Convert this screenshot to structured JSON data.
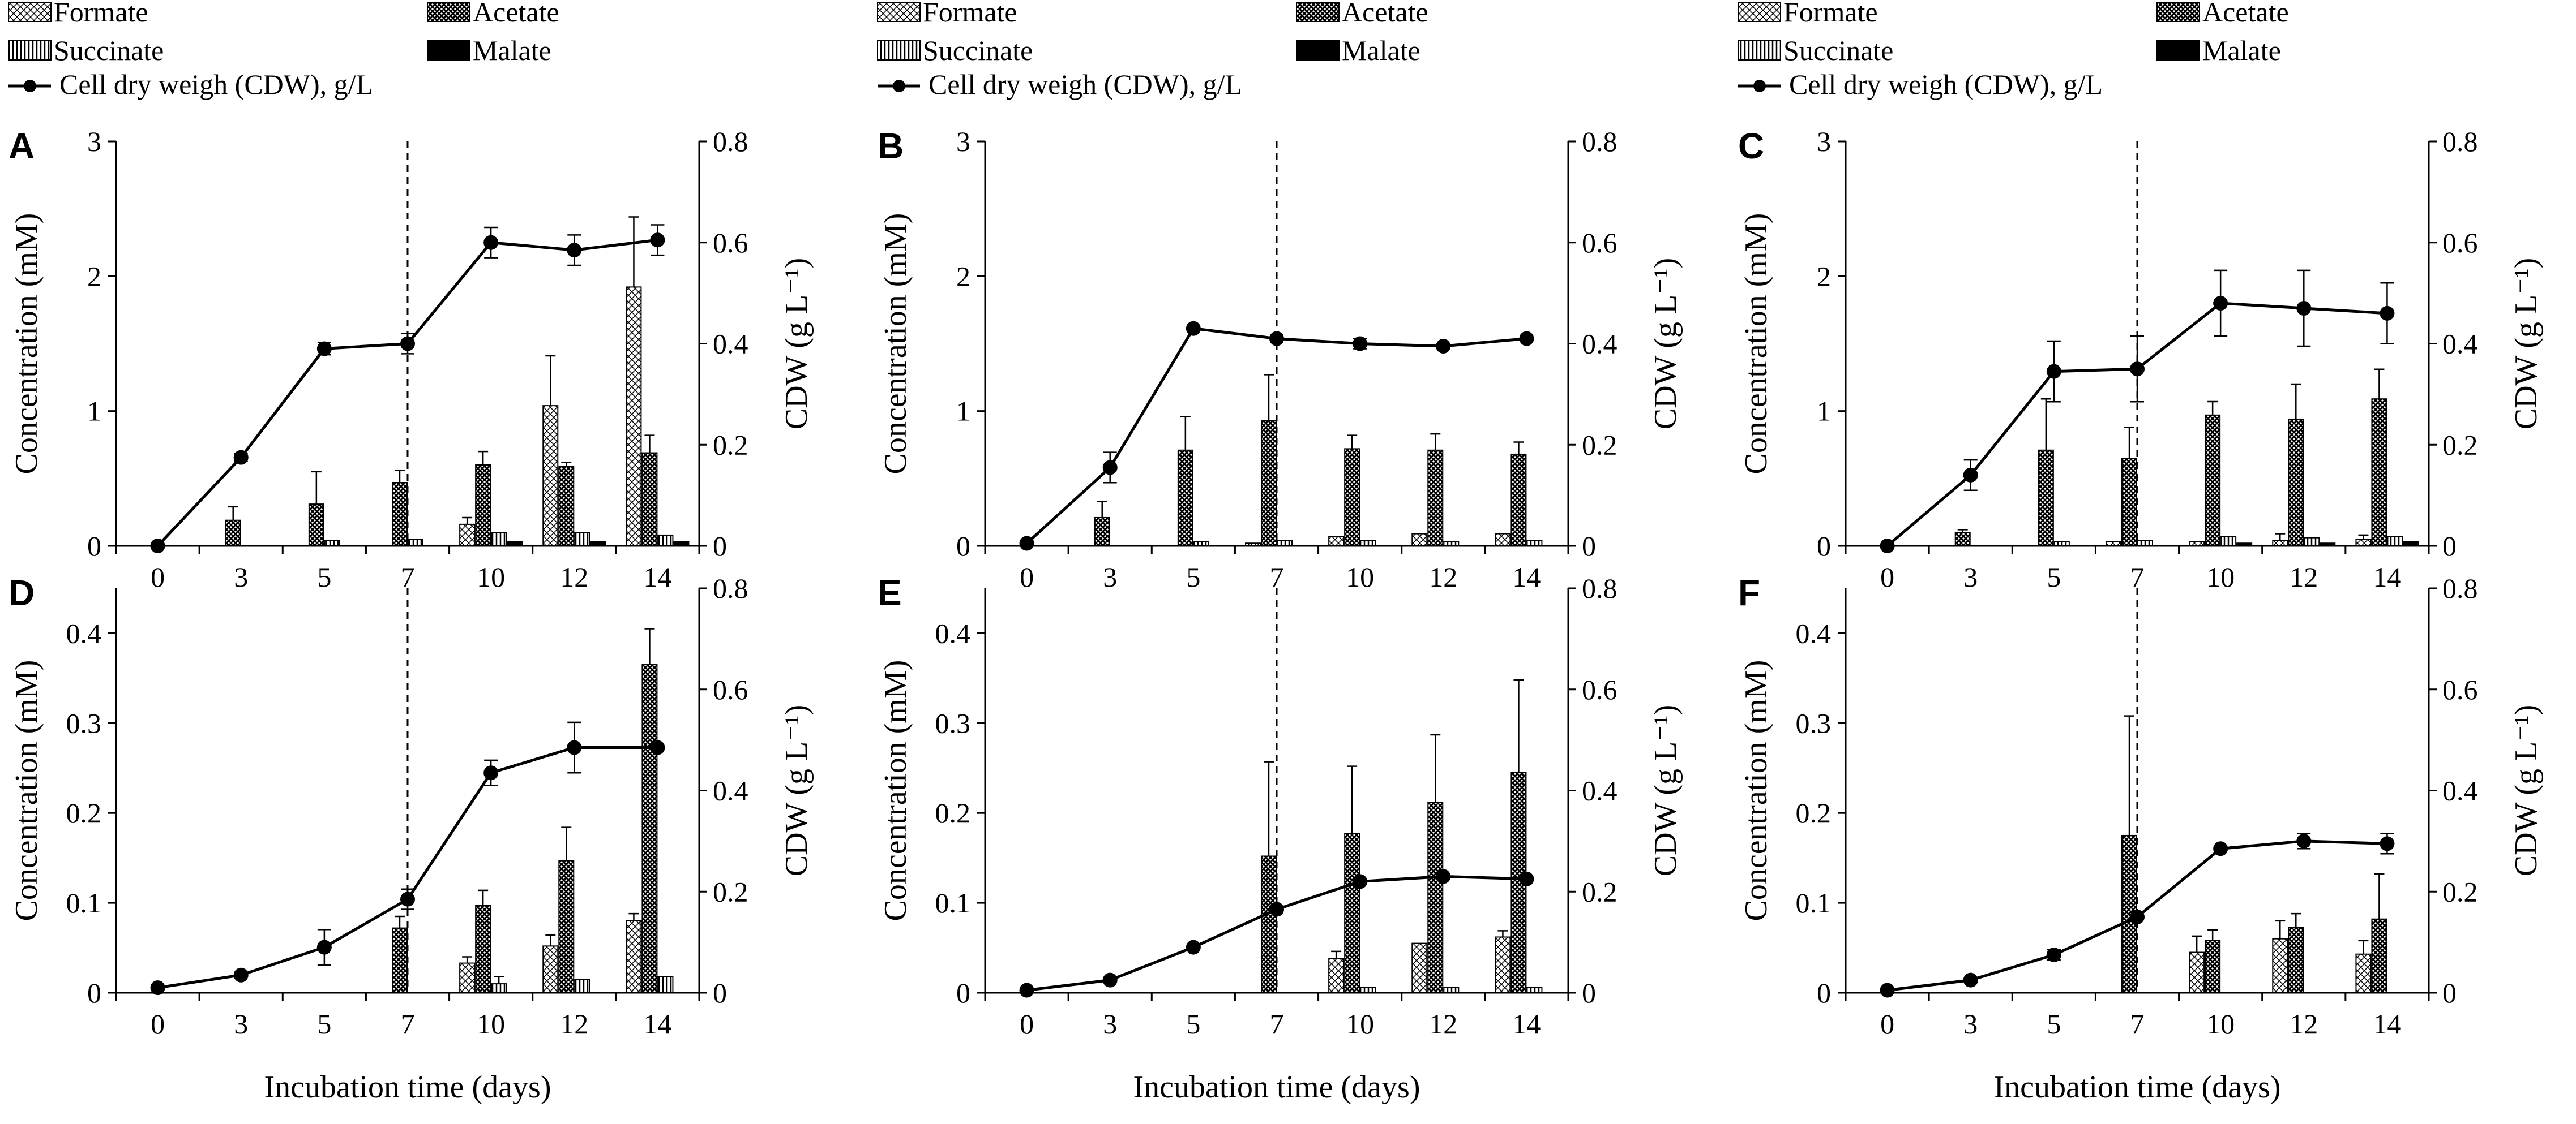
{
  "colors": {
    "ink": "#000000",
    "background": "#ffffff"
  },
  "legend": {
    "formate": "Formate",
    "acetate": "Acetate",
    "succinate": "Succinate",
    "malate": "Malate",
    "cdw": "Cell dry weigh (CDW), g/L"
  },
  "axes": {
    "ylabel_left": "Concentration (mM)",
    "ylabel_right": "CDW (g L⁻¹)",
    "xlabel": "Incubation time (days)"
  },
  "chart_data": [
    {
      "panel": "A",
      "type": "bar",
      "categories": [
        "0",
        "3",
        "5",
        "7",
        "10",
        "12",
        "14"
      ],
      "ylim": [
        0,
        3
      ],
      "yticks": [
        "0",
        "1",
        "2",
        "3"
      ],
      "y2lim": [
        0,
        0.8
      ],
      "y2ticks": [
        "0",
        "0.2",
        "0.4",
        "0.6",
        "0.8"
      ],
      "marker_at": "7",
      "series": [
        {
          "name": "Formate",
          "values": [
            0,
            0,
            0,
            0,
            0.16,
            1.04,
            1.92
          ],
          "errors": [
            0,
            0,
            0,
            0,
            0.05,
            0.37,
            0.52
          ]
        },
        {
          "name": "Acetate",
          "values": [
            0,
            0.19,
            0.31,
            0.47,
            0.6,
            0.59,
            0.69
          ],
          "errors": [
            0,
            0.1,
            0.24,
            0.09,
            0.1,
            0.03,
            0.13
          ]
        },
        {
          "name": "Succinate",
          "values": [
            0,
            0,
            0.04,
            0.05,
            0.1,
            0.1,
            0.08
          ],
          "errors": [
            0,
            0,
            0,
            0,
            0,
            0,
            0
          ]
        },
        {
          "name": "Malate",
          "values": [
            0,
            0,
            0,
            0,
            0.03,
            0.03,
            0.03
          ],
          "errors": [
            0,
            0,
            0,
            0,
            0,
            0,
            0
          ]
        }
      ],
      "cdw": {
        "values": [
          0,
          0.175,
          0.39,
          0.4,
          0.6,
          0.585,
          0.605
        ],
        "errors": [
          0,
          0.008,
          0.012,
          0.02,
          0.03,
          0.03,
          0.03
        ]
      }
    },
    {
      "panel": "B",
      "type": "bar",
      "categories": [
        "0",
        "3",
        "5",
        "7",
        "10",
        "12",
        "14"
      ],
      "ylim": [
        0,
        3
      ],
      "yticks": [
        "0",
        "1",
        "2",
        "3"
      ],
      "y2lim": [
        0,
        0.8
      ],
      "y2ticks": [
        "0",
        "0.2",
        "0.4",
        "0.6",
        "0.8"
      ],
      "marker_at": "7",
      "series": [
        {
          "name": "Formate",
          "values": [
            0,
            0,
            0,
            0.02,
            0.07,
            0.09,
            0.09
          ],
          "errors": [
            0,
            0,
            0,
            0,
            0,
            0,
            0
          ]
        },
        {
          "name": "Acetate",
          "values": [
            0,
            0.21,
            0.71,
            0.93,
            0.72,
            0.71,
            0.68
          ],
          "errors": [
            0,
            0.12,
            0.25,
            0.34,
            0.1,
            0.12,
            0.09
          ]
        },
        {
          "name": "Succinate",
          "values": [
            0,
            0,
            0.03,
            0.04,
            0.04,
            0.03,
            0.04
          ],
          "errors": [
            0,
            0,
            0,
            0,
            0,
            0,
            0
          ]
        },
        {
          "name": "Malate",
          "values": [
            0,
            0,
            0,
            0,
            0,
            0,
            0
          ],
          "errors": [
            0,
            0,
            0,
            0,
            0,
            0,
            0
          ]
        }
      ],
      "cdw": {
        "values": [
          0.005,
          0.155,
          0.43,
          0.41,
          0.4,
          0.395,
          0.41
        ],
        "errors": [
          0,
          0.03,
          0,
          0.008,
          0.01,
          0.005,
          0
        ]
      }
    },
    {
      "panel": "C",
      "type": "bar",
      "categories": [
        "0",
        "3",
        "5",
        "7",
        "10",
        "12",
        "14"
      ],
      "ylim": [
        0,
        3
      ],
      "yticks": [
        "0",
        "1",
        "2",
        "3"
      ],
      "y2lim": [
        0,
        0.8
      ],
      "y2ticks": [
        "0",
        "0.2",
        "0.4",
        "0.6",
        "0.8"
      ],
      "marker_at": "7",
      "series": [
        {
          "name": "Formate",
          "values": [
            0,
            0,
            0,
            0.03,
            0.03,
            0.04,
            0.05
          ],
          "errors": [
            0,
            0,
            0,
            0,
            0,
            0.05,
            0.03
          ]
        },
        {
          "name": "Acetate",
          "values": [
            0,
            0.1,
            0.71,
            0.65,
            0.97,
            0.94,
            1.09
          ],
          "errors": [
            0,
            0.02,
            0.38,
            0.23,
            0.1,
            0.26,
            0.22
          ]
        },
        {
          "name": "Succinate",
          "values": [
            0,
            0,
            0.03,
            0.04,
            0.07,
            0.06,
            0.07
          ],
          "errors": [
            0,
            0,
            0,
            0,
            0,
            0,
            0
          ]
        },
        {
          "name": "Malate",
          "values": [
            0,
            0,
            0,
            0,
            0.02,
            0.02,
            0.03
          ],
          "errors": [
            0,
            0,
            0,
            0,
            0,
            0,
            0
          ]
        }
      ],
      "cdw": {
        "values": [
          0,
          0.14,
          0.345,
          0.35,
          0.48,
          0.47,
          0.46
        ],
        "errors": [
          0,
          0.03,
          0.06,
          0.065,
          0.065,
          0.075,
          0.06
        ]
      }
    },
    {
      "panel": "D",
      "type": "bar",
      "categories": [
        "0",
        "3",
        "5",
        "7",
        "10",
        "12",
        "14"
      ],
      "ylim": [
        0,
        0.45
      ],
      "yticks": [
        "0",
        "0.1",
        "0.2",
        "0.3",
        "0.4"
      ],
      "y2lim": [
        0,
        0.8
      ],
      "y2ticks": [
        "0",
        "0.2",
        "0.4",
        "0.6",
        "0.8"
      ],
      "marker_at": "7",
      "series": [
        {
          "name": "Formate",
          "values": [
            0,
            0,
            0,
            0,
            0.033,
            0.052,
            0.08
          ],
          "errors": [
            0,
            0,
            0,
            0,
            0.007,
            0.012,
            0.008
          ]
        },
        {
          "name": "Acetate",
          "values": [
            0,
            0,
            0,
            0.072,
            0.097,
            0.147,
            0.365
          ],
          "errors": [
            0,
            0,
            0,
            0.013,
            0.017,
            0.037,
            0.04
          ]
        },
        {
          "name": "Succinate",
          "values": [
            0,
            0,
            0,
            0,
            0.01,
            0.015,
            0.018
          ],
          "errors": [
            0,
            0,
            0,
            0,
            0.008,
            0,
            0
          ]
        },
        {
          "name": "Malate",
          "values": [
            0,
            0,
            0,
            0,
            0,
            0,
            0
          ],
          "errors": [
            0,
            0,
            0,
            0,
            0,
            0,
            0
          ]
        }
      ],
      "cdw": {
        "values": [
          0.01,
          0.035,
          0.09,
          0.185,
          0.435,
          0.485,
          0.485
        ],
        "errors": [
          0,
          0,
          0.035,
          0.02,
          0.025,
          0.05,
          0
        ]
      }
    },
    {
      "panel": "E",
      "type": "bar",
      "categories": [
        "0",
        "3",
        "5",
        "7",
        "10",
        "12",
        "14"
      ],
      "ylim": [
        0,
        0.45
      ],
      "yticks": [
        "0",
        "0.1",
        "0.2",
        "0.3",
        "0.4"
      ],
      "y2lim": [
        0,
        0.8
      ],
      "y2ticks": [
        "0",
        "0.2",
        "0.4",
        "0.6",
        "0.8"
      ],
      "marker_at": "7",
      "series": [
        {
          "name": "Formate",
          "values": [
            0,
            0,
            0,
            0,
            0.038,
            0.055,
            0.062
          ],
          "errors": [
            0,
            0,
            0,
            0,
            0.008,
            0,
            0.007
          ]
        },
        {
          "name": "Acetate",
          "values": [
            0,
            0,
            0,
            0.152,
            0.177,
            0.212,
            0.245
          ],
          "errors": [
            0,
            0,
            0,
            0.105,
            0.075,
            0.075,
            0.103
          ]
        },
        {
          "name": "Succinate",
          "values": [
            0,
            0,
            0,
            0,
            0.006,
            0.006,
            0.006
          ],
          "errors": [
            0,
            0,
            0,
            0,
            0,
            0,
            0
          ]
        },
        {
          "name": "Malate",
          "values": [
            0,
            0,
            0,
            0,
            0,
            0,
            0
          ],
          "errors": [
            0,
            0,
            0,
            0,
            0,
            0,
            0
          ]
        }
      ],
      "cdw": {
        "values": [
          0.005,
          0.025,
          0.09,
          0.165,
          0.22,
          0.23,
          0.225
        ],
        "errors": [
          0,
          0,
          0,
          0,
          0,
          0,
          0
        ]
      }
    },
    {
      "panel": "F",
      "type": "bar",
      "categories": [
        "0",
        "3",
        "5",
        "7",
        "10",
        "12",
        "14"
      ],
      "ylim": [
        0,
        0.45
      ],
      "yticks": [
        "0",
        "0.1",
        "0.2",
        "0.3",
        "0.4"
      ],
      "y2lim": [
        0,
        0.8
      ],
      "y2ticks": [
        "0",
        "0.2",
        "0.4",
        "0.6",
        "0.8"
      ],
      "marker_at": "7",
      "series": [
        {
          "name": "Formate",
          "values": [
            0,
            0,
            0,
            0,
            0.045,
            0.06,
            0.043
          ],
          "errors": [
            0,
            0,
            0,
            0,
            0.018,
            0.02,
            0.015
          ]
        },
        {
          "name": "Acetate",
          "values": [
            0,
            0,
            0,
            0.175,
            0.058,
            0.073,
            0.082
          ],
          "errors": [
            0,
            0,
            0,
            0.133,
            0.012,
            0.015,
            0.05
          ]
        },
        {
          "name": "Succinate",
          "values": [
            0,
            0,
            0,
            0,
            0,
            0,
            0
          ],
          "errors": [
            0,
            0,
            0,
            0,
            0,
            0,
            0
          ]
        },
        {
          "name": "Malate",
          "values": [
            0,
            0,
            0,
            0,
            0,
            0,
            0
          ],
          "errors": [
            0,
            0,
            0,
            0,
            0,
            0,
            0
          ]
        }
      ],
      "cdw": {
        "values": [
          0.005,
          0.025,
          0.075,
          0.15,
          0.285,
          0.3,
          0.295
        ],
        "errors": [
          0,
          0,
          0.01,
          0,
          0,
          0.015,
          0.02
        ]
      }
    }
  ]
}
